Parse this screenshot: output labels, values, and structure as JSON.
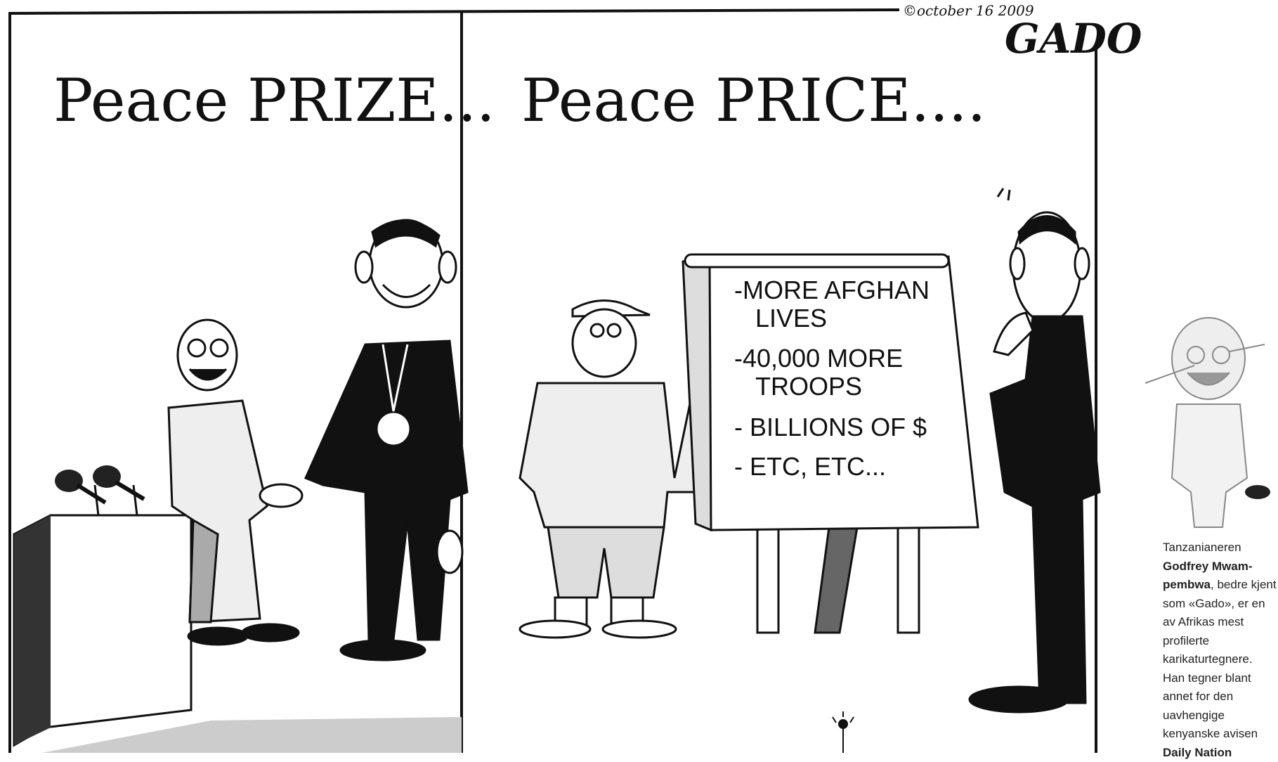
{
  "signature": {
    "date": "©october 16 2009",
    "artist": "GADO"
  },
  "panels": [
    {
      "title": "Peace PRIZE..."
    },
    {
      "title": "Peace PRICE....",
      "flipchart": [
        [
          "-MORE AFGHAN",
          "LIVES"
        ],
        [
          "-40,000 MORE",
          "TROOPS"
        ],
        [
          "- BILLIONS OF $"
        ],
        [
          "- ETC, ETC..."
        ]
      ]
    }
  ],
  "caption": {
    "intro": "Tanzanianeren",
    "name": "Godfrey Mwam-pembwa",
    "text": ", bedre kjent som «Gado», er en av Afrikas mest profilerte karikaturtegnere. Han tegner blant annet for den uavhengige kenyanske avisen",
    "paper": "Daily Nation"
  }
}
